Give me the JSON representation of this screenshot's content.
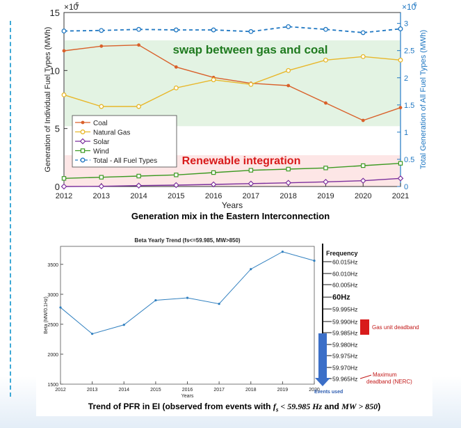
{
  "chart_data": [
    {
      "type": "line",
      "title": "Generation mix in the Eastern Interconnection",
      "xlabel": "Years",
      "ylabel": "Generation of Individual Fuel Types (MWh)",
      "ylabel_right": "Total Generation of All Fuel Types (MWh)",
      "y_multiplier_left": "×10",
      "y_multiplier_left_exp": "5",
      "y_multiplier_right": "×10",
      "y_multiplier_right_exp": "6",
      "x": [
        2012,
        2013,
        2014,
        2015,
        2016,
        2017,
        2018,
        2019,
        2020,
        2021
      ],
      "x_ticks": [
        "2012",
        "2013",
        "2014",
        "2015",
        "2016",
        "2017",
        "2018",
        "2019",
        "2020",
        "2021"
      ],
      "ylim": [
        0,
        15
      ],
      "y_ticks": [
        "0",
        "5",
        "10",
        "15"
      ],
      "ylim_right": [
        0,
        3.2
      ],
      "y_ticks_right": [
        "0",
        "0.5",
        "1",
        "1.5",
        "2",
        "2.5",
        "3"
      ],
      "series": [
        {
          "name": "Coal",
          "axis": "left",
          "color": "#d9602a",
          "marker": "dot",
          "values": [
            11.7,
            12.1,
            12.2,
            10.3,
            9.4,
            8.9,
            8.7,
            7.2,
            5.7,
            6.8
          ]
        },
        {
          "name": "Natural Gas",
          "axis": "left",
          "color": "#e8b72a",
          "marker": "circle",
          "values": [
            7.9,
            6.9,
            6.9,
            8.5,
            9.2,
            8.8,
            10.0,
            10.9,
            11.2,
            10.9
          ]
        },
        {
          "name": "Solar",
          "axis": "left",
          "color": "#7b2f9c",
          "marker": "diamond",
          "values": [
            0.0,
            0.02,
            0.08,
            0.12,
            0.18,
            0.25,
            0.32,
            0.4,
            0.5,
            0.7
          ]
        },
        {
          "name": "Wind",
          "axis": "left",
          "color": "#3c9a22",
          "marker": "square",
          "values": [
            0.7,
            0.8,
            0.9,
            1.0,
            1.2,
            1.4,
            1.5,
            1.6,
            1.8,
            2.0
          ]
        },
        {
          "name": "Total - All Fuel Types",
          "axis": "right",
          "color": "#1f77c2",
          "marker": "circle",
          "dashed": true,
          "values": [
            2.86,
            2.87,
            2.89,
            2.88,
            2.88,
            2.85,
            2.94,
            2.89,
            2.83,
            2.9
          ]
        }
      ],
      "annotations": {
        "gas_coal": {
          "text": "swap between gas and coal",
          "color": "#1f7a1f",
          "bg": "#e3f3e3"
        },
        "renewable": {
          "text": "Renewable integration",
          "color": "#d81b1b",
          "bg": "#fde6e6"
        }
      }
    },
    {
      "type": "line",
      "title": "Beta Yearly Trend (fs<=59.985, MW>850)",
      "xlabel": "Years",
      "ylabel": "Beta (MW/0.1Hz)",
      "x": [
        2012,
        2013,
        2014,
        2015,
        2016,
        2017,
        2018,
        2019,
        2020
      ],
      "x_ticks": [
        "2012",
        "2013",
        "2014",
        "2015",
        "2016",
        "2017",
        "2018",
        "2019",
        "2020"
      ],
      "ylim": [
        1500,
        3800
      ],
      "y_ticks": [
        "1500",
        "2000",
        "2500",
        "3000",
        "3500"
      ],
      "series": [
        {
          "name": "Beta",
          "color": "#2f7fbf",
          "values": [
            2780,
            2340,
            2490,
            2900,
            2940,
            2840,
            3420,
            3710,
            3560
          ]
        }
      ],
      "frequency_scale": {
        "title": "Frequency",
        "labels": [
          "60.015Hz",
          "60.010Hz",
          "60.005Hz",
          "60Hz",
          "59.995Hz",
          "59.990Hz",
          "59.985Hz",
          "59.980Hz",
          "59.975Hz",
          "59.970Hz",
          "59.965Hz"
        ],
        "gas_deadband": "Gas unit deadband",
        "max_deadband_1": "Maximum",
        "max_deadband_2": "deadband (NERC)",
        "events_used": "Events used"
      },
      "caption_prefix": "Trend of PFR in EI (observed from events with ",
      "caption_math1": "f",
      "caption_math1_sub": "s",
      "caption_math2": " < 59.985 Hz",
      "caption_mid": " and ",
      "caption_math3": "MW > 850",
      "caption_suffix": ")"
    }
  ]
}
